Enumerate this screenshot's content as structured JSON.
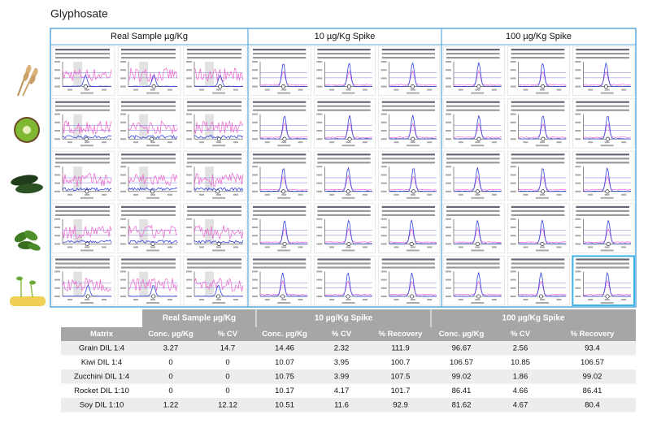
{
  "title": "Glyphosate",
  "panel": {
    "column_headers": [
      "Real Sample µg/Kg",
      "10 µg/Kg Spike",
      "100 µg/Kg Spike"
    ]
  },
  "table": {
    "group_headers": [
      "Real Sample µg/Kg",
      "10 µg/Kg Spike",
      "100 µg/Kg Spike"
    ],
    "columns": [
      "Matrix",
      "Conc. µg/Kg",
      "% CV",
      "Conc. µg/Kg",
      "% CV",
      "% Recovery",
      "Conc. µg/Kg",
      "% CV",
      "% Recovery"
    ],
    "rows": [
      [
        "Grain DIL 1:4",
        3.27,
        14.7,
        14.46,
        2.32,
        111.9,
        96.67,
        2.56,
        93.4
      ],
      [
        "Kiwi DIL 1:4",
        0,
        0,
        10.07,
        3.95,
        100.7,
        106.57,
        10.85,
        106.57
      ],
      [
        "Zucchini DIL 1:4",
        0,
        0,
        10.75,
        3.99,
        107.5,
        99.02,
        1.86,
        99.02
      ],
      [
        "Rocket DIL 1:10",
        0,
        0,
        10.17,
        4.17,
        101.7,
        86.41,
        4.66,
        86.41
      ],
      [
        "Soy DIL 1:10",
        1.22,
        12.12,
        10.51,
        11.6,
        92.9,
        81.62,
        4.67,
        80.4
      ]
    ]
  }
}
